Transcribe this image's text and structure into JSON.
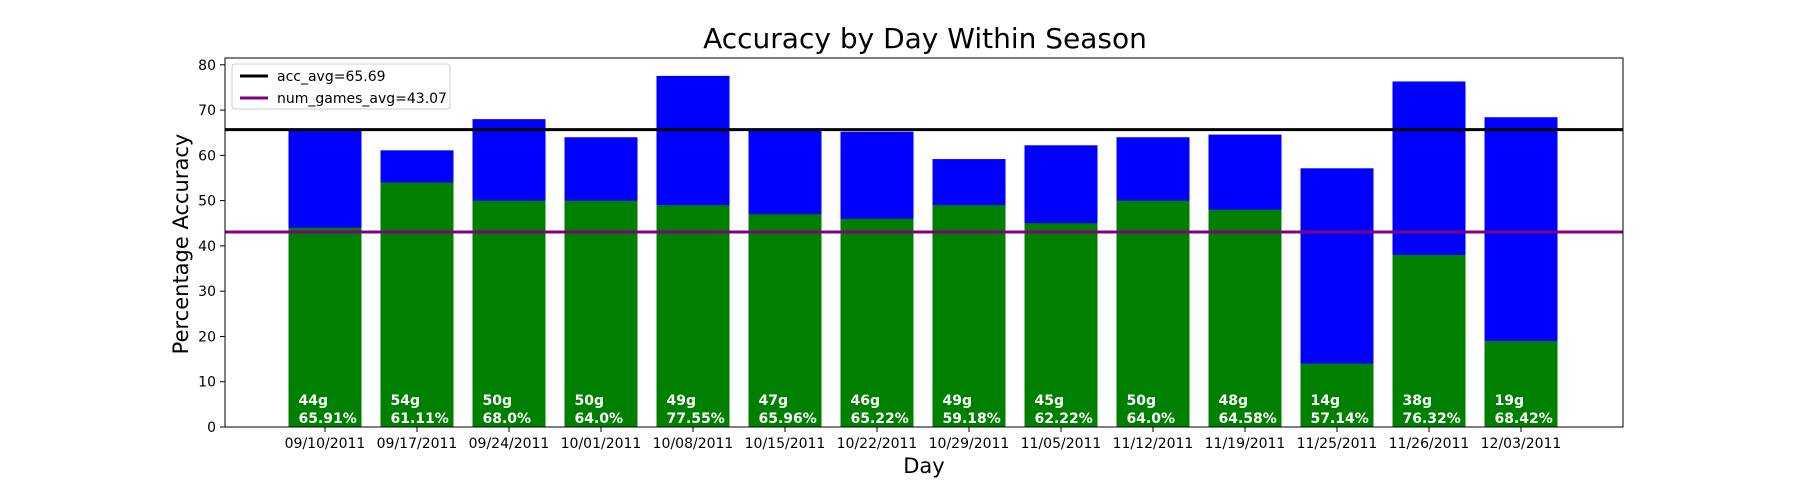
{
  "chart_data": {
    "type": "bar",
    "title": "Accuracy by Day Within Season",
    "xlabel": "Day",
    "ylabel": "Percentage Accuracy",
    "ylim": [
      0,
      81.5
    ],
    "yticks": [
      0,
      10,
      20,
      30,
      40,
      50,
      60,
      70,
      80
    ],
    "categories": [
      "09/10/2011",
      "09/17/2011",
      "09/24/2011",
      "10/01/2011",
      "10/08/2011",
      "10/15/2011",
      "10/22/2011",
      "10/29/2011",
      "11/05/2011",
      "11/12/2011",
      "11/19/2011",
      "11/25/2011",
      "11/26/2011",
      "12/03/2011"
    ],
    "series": [
      {
        "color": "#0000ff",
        "values": [
          65.91,
          61.11,
          68.0,
          64.0,
          77.55,
          65.96,
          65.22,
          59.18,
          62.22,
          64.0,
          64.58,
          57.14,
          76.32,
          68.42
        ]
      },
      {
        "color": "#008000",
        "values": [
          44,
          54,
          50,
          50,
          49,
          47,
          46,
          49,
          45,
          50,
          48,
          14,
          38,
          19
        ]
      }
    ],
    "bar_labels": [
      [
        "44g",
        "65.91%"
      ],
      [
        "54g",
        "61.11%"
      ],
      [
        "50g",
        "68.0%"
      ],
      [
        "50g",
        "64.0%"
      ],
      [
        "49g",
        "77.55%"
      ],
      [
        "47g",
        "65.96%"
      ],
      [
        "46g",
        "65.22%"
      ],
      [
        "49g",
        "59.18%"
      ],
      [
        "45g",
        "62.22%"
      ],
      [
        "50g",
        "64.0%"
      ],
      [
        "48g",
        "64.58%"
      ],
      [
        "14g",
        "57.14%"
      ],
      [
        "38g",
        "76.32%"
      ],
      [
        "19g",
        "68.42%"
      ]
    ],
    "reference_lines": [
      {
        "label": "acc_avg=65.69",
        "value": 65.69,
        "color": "#000000"
      },
      {
        "label": "num_games_avg=43.07",
        "value": 43.07,
        "color": "#800080"
      }
    ],
    "legend_position": "upper left",
    "grid": false
  }
}
